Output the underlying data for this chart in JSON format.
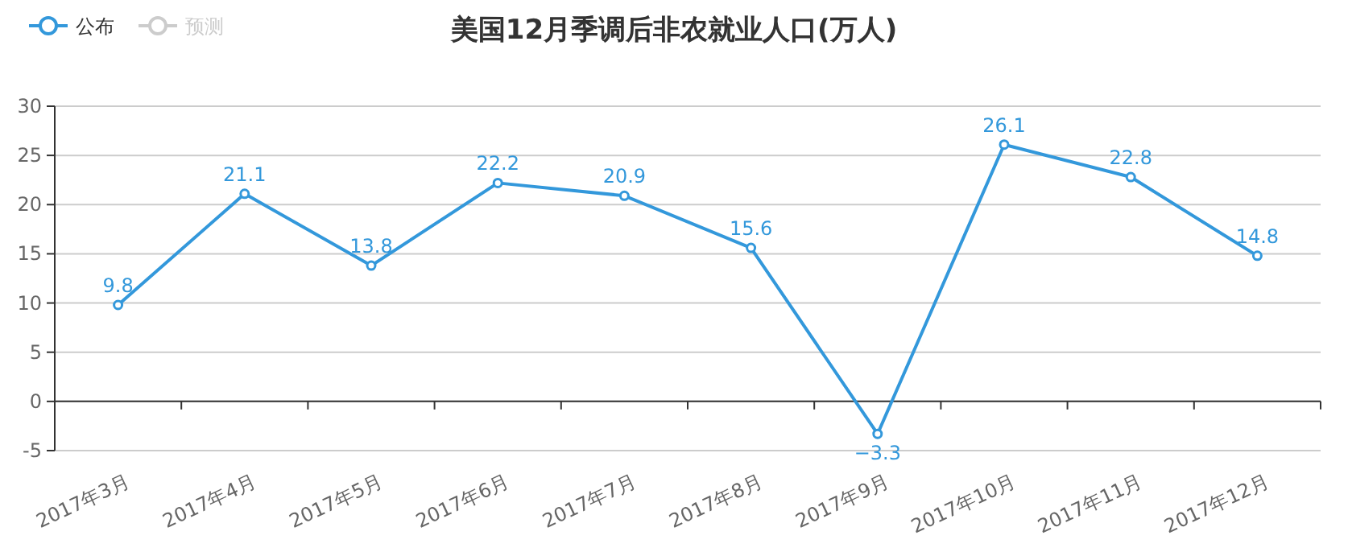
{
  "chart_data": {
    "type": "line",
    "title": "美国12月季调后非农就业人口(万人)",
    "categories": [
      "2017年3月",
      "2017年4月",
      "2017年5月",
      "2017年6月",
      "2017年7月",
      "2017年8月",
      "2017年9月",
      "2017年10月",
      "2017年11月",
      "2017年12月"
    ],
    "series": [
      {
        "name": "公布",
        "color": "#3398db",
        "values": [
          9.8,
          21.1,
          13.8,
          22.2,
          20.9,
          15.6,
          -3.3,
          26.1,
          22.8,
          14.8
        ]
      },
      {
        "name": "预测",
        "color": "#cccccc",
        "values": [
          null,
          null,
          null,
          null,
          null,
          null,
          null,
          null,
          null,
          null
        ]
      }
    ],
    "ylim": [
      -5,
      30
    ],
    "yticks": [
      -5,
      0,
      5,
      10,
      15,
      20,
      25,
      30
    ],
    "grid": "y",
    "legend": "top left",
    "marker": "circle",
    "data_labels": true
  }
}
